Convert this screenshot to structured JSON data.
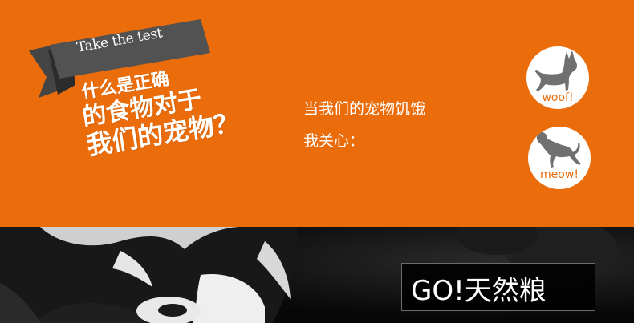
{
  "ribbon": {
    "label": "Take the test"
  },
  "headline": {
    "line1": "什么是正确",
    "line2": "的食物对于",
    "line3": "我们的宠物？"
  },
  "body": {
    "line1": "当我们的宠物饥饿",
    "line2": "我关心："
  },
  "badges": {
    "woof": {
      "label": "woof!",
      "icon": "dog-silhouette-icon"
    },
    "meow": {
      "label": "meow!",
      "icon": "cat-silhouette-icon"
    }
  },
  "brand": {
    "title": "GO!天然粮"
  },
  "colors": {
    "orange": "#ea6c0a",
    "ribbon": "#525252",
    "ribbon_dark": "#2c2c2c",
    "icon_gray": "#707070"
  }
}
